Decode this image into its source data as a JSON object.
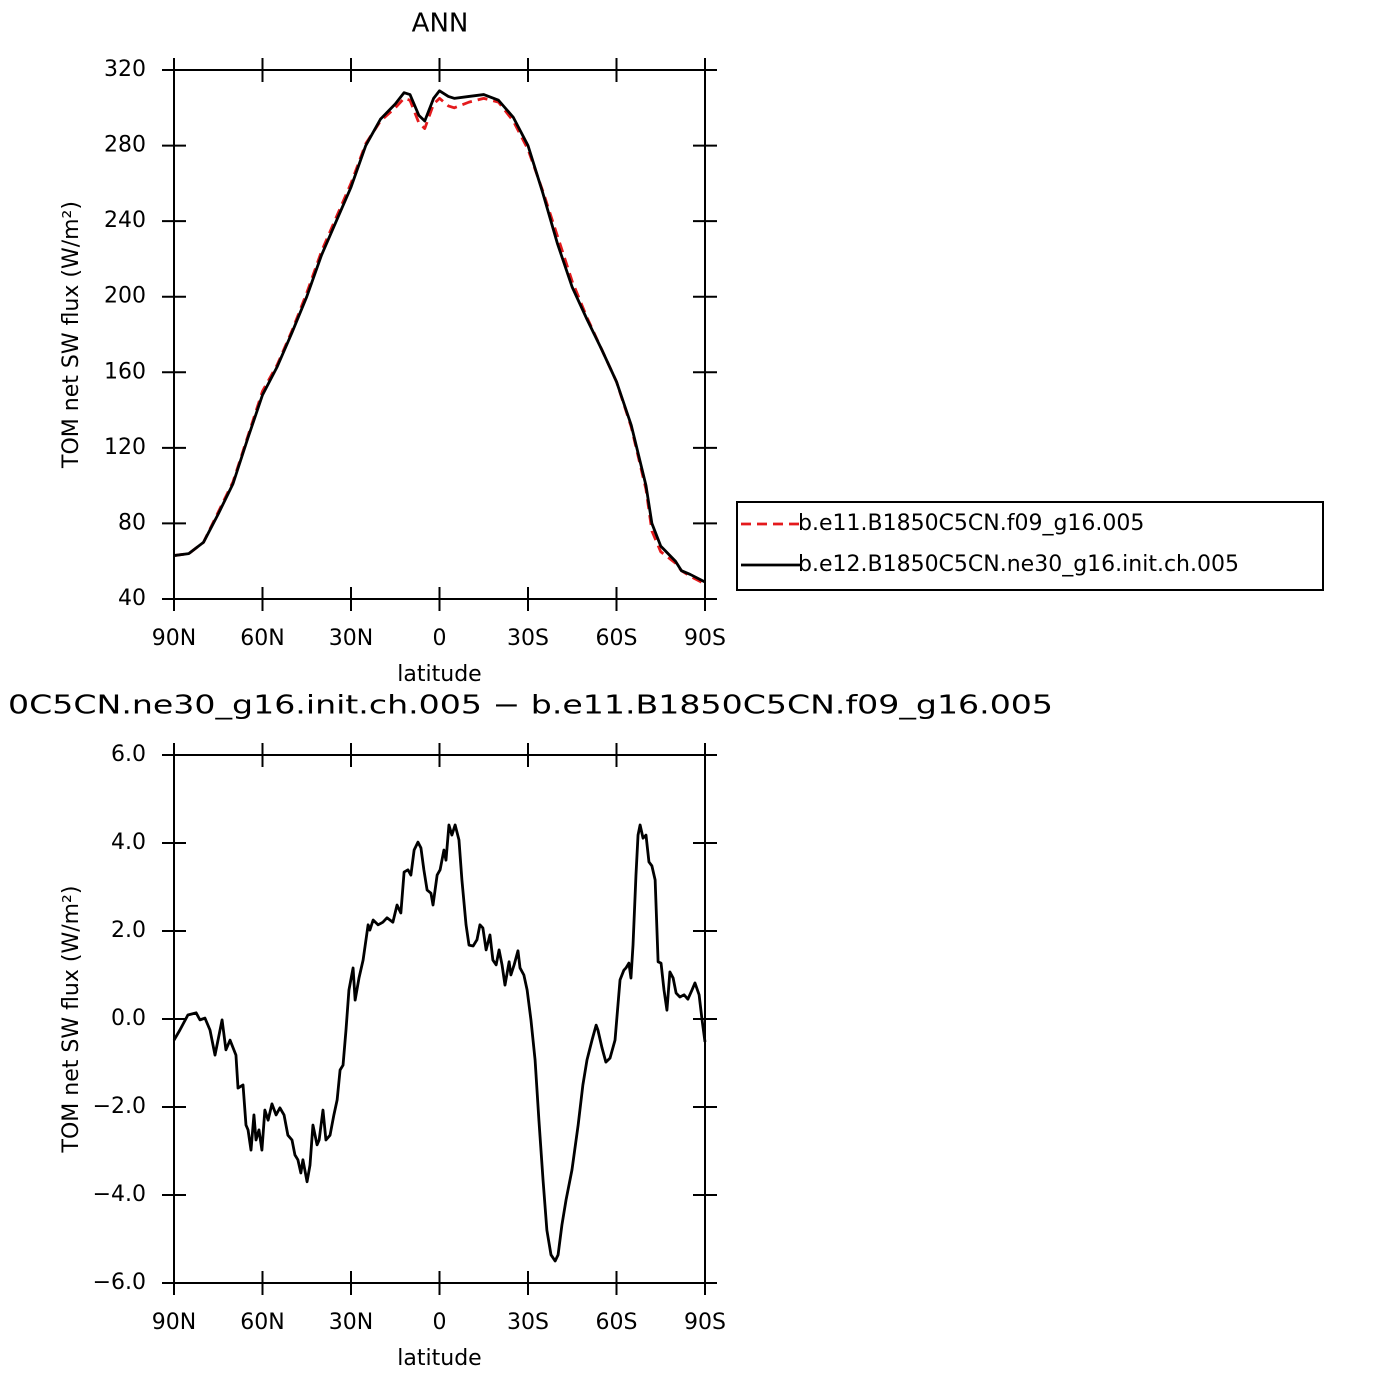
{
  "chart_data": [
    {
      "type": "line",
      "title": "ANN",
      "xlabel": "latitude",
      "ylabel": "TOM net SW flux (W/m²)",
      "x": [
        90,
        85,
        80,
        75,
        70,
        65,
        60,
        55,
        50,
        45,
        40,
        35,
        30,
        25,
        20,
        15,
        12,
        10,
        7,
        5,
        2,
        0,
        -3,
        -5,
        -10,
        -15,
        -20,
        -25,
        -30,
        -35,
        -40,
        -45,
        -50,
        -55,
        -60,
        -65,
        -70,
        -72,
        -75,
        -80,
        -82,
        -85,
        -90
      ],
      "series": [
        {
          "name": "b.e11.B1850C5CN.f09_g16.005",
          "color": "#e41a1c",
          "dash": true,
          "values": [
            63,
            64,
            70,
            86,
            102,
            126,
            150,
            164,
            182,
            202,
            224,
            242,
            260,
            281,
            293,
            300,
            305,
            304,
            292,
            289,
            302,
            305,
            301,
            300,
            303,
            305,
            303,
            293,
            278,
            256,
            232,
            208,
            189,
            172,
            155,
            131,
            98,
            76,
            65,
            59,
            55,
            52,
            48
          ]
        },
        {
          "name": "b.e12.B1850C5CN.ne30_g16.init.ch.005",
          "color": "#000000",
          "dash": false,
          "values": [
            63,
            64,
            70,
            85,
            101,
            125,
            148,
            163,
            181,
            200,
            222,
            240,
            258,
            280,
            294,
            302,
            308,
            307,
            296,
            293,
            305,
            309,
            306,
            305,
            306,
            307,
            304,
            295,
            280,
            255,
            228,
            205,
            188,
            172,
            155,
            132,
            100,
            80,
            68,
            60,
            55,
            53,
            49
          ]
        }
      ],
      "xlim": [
        90,
        -90
      ],
      "xticks": [
        {
          "value": 90,
          "label": "90N"
        },
        {
          "value": 60,
          "label": "60N"
        },
        {
          "value": 30,
          "label": "30N"
        },
        0,
        {
          "value": -30,
          "label": "30S"
        },
        {
          "value": -60,
          "label": "60S"
        },
        {
          "value": -90,
          "label": "90S"
        }
      ],
      "ylim": [
        40,
        320
      ],
      "yticks": [
        40,
        80,
        120,
        160,
        200,
        240,
        280,
        320
      ],
      "legend": "right"
    },
    {
      "type": "line",
      "title": "0C5CN.ne30_g16.init.ch.005 − b.e11.B1850C5CN.f09_g16.005",
      "xlabel": "latitude",
      "ylabel": "TOM net SW flux (W/m²)",
      "x": [
        90.0,
        88.0,
        85.3,
        82.5,
        81.2,
        79.5,
        77.8,
        76.1,
        73.7,
        72.4,
        71.0,
        69.0,
        68.3,
        66.6,
        65.6,
        64.9,
        63.9,
        62.9,
        62.2,
        61.2,
        60.2,
        59.2,
        58.1,
        56.8,
        55.4,
        54.1,
        52.7,
        51.4,
        50.0,
        49.0,
        48.0,
        47.0,
        46.3,
        44.9,
        43.9,
        42.9,
        41.5,
        40.8,
        39.5,
        38.5,
        37.1,
        35.8,
        34.7,
        33.7,
        32.7,
        31.7,
        30.7,
        29.3,
        28.6,
        27.3,
        25.9,
        24.2,
        23.6,
        22.5,
        20.8,
        19.2,
        17.8,
        15.8,
        14.4,
        13.1,
        12.0,
        10.7,
        9.7,
        8.6,
        7.3,
        6.3,
        5.3,
        4.2,
        2.9,
        2.2,
        0.8,
        -0.2,
        -1.5,
        -2.2,
        -3.2,
        -4.2,
        -5.3,
        -6.6,
        -7.6,
        -9.0,
        -10.0,
        -11.4,
        -12.7,
        -13.7,
        -14.7,
        -15.8,
        -17.1,
        -18.1,
        -19.2,
        -20.2,
        -21.2,
        -22.2,
        -23.6,
        -24.2,
        -25.3,
        -26.6,
        -27.3,
        -28.6,
        -29.7,
        -31.0,
        -32.4,
        -33.7,
        -35.1,
        -36.4,
        -37.8,
        -39.2,
        -40.2,
        -41.5,
        -42.9,
        -44.9,
        -47.0,
        -48.6,
        -50.0,
        -51.7,
        -53.1,
        -53.7,
        -55.1,
        -56.4,
        -57.8,
        -59.5,
        -61.2,
        -62.5,
        -63.2,
        -64.2,
        -64.9,
        -65.6,
        -66.6,
        -67.3,
        -68.0,
        -69.0,
        -70.0,
        -71.0,
        -72.0,
        -73.1,
        -74.1,
        -75.1,
        -76.1,
        -77.1,
        -78.1,
        -79.2,
        -80.2,
        -81.5,
        -82.9,
        -84.2,
        -85.6,
        -86.6,
        -88.0,
        -89.0,
        -90.0
      ],
      "values": [
        -0.48,
        -0.25,
        0.09,
        0.14,
        -0.02,
        0.02,
        -0.25,
        -0.82,
        -0.02,
        -0.7,
        -0.48,
        -0.82,
        -1.57,
        -1.5,
        -2.41,
        -2.52,
        -2.98,
        -2.18,
        -2.75,
        -2.52,
        -2.98,
        -2.07,
        -2.3,
        -1.93,
        -2.18,
        -2.02,
        -2.18,
        -2.64,
        -2.75,
        -3.09,
        -3.2,
        -3.5,
        -3.2,
        -3.7,
        -3.32,
        -2.41,
        -2.86,
        -2.75,
        -2.07,
        -2.75,
        -2.64,
        -2.18,
        -1.84,
        -1.16,
        -1.05,
        -0.25,
        0.66,
        1.16,
        0.43,
        0.93,
        1.34,
        2.14,
        2.02,
        2.25,
        2.14,
        2.2,
        2.3,
        2.2,
        2.59,
        2.41,
        3.34,
        3.39,
        3.27,
        3.84,
        4.02,
        3.89,
        3.39,
        2.93,
        2.86,
        2.59,
        3.27,
        3.39,
        3.84,
        3.61,
        4.41,
        4.18,
        4.41,
        4.07,
        3.16,
        2.14,
        1.68,
        1.66,
        1.8,
        2.14,
        2.07,
        1.57,
        1.91,
        1.34,
        1.23,
        1.57,
        1.23,
        0.77,
        1.3,
        1.0,
        1.23,
        1.55,
        1.16,
        1.0,
        0.66,
        -0.02,
        -0.93,
        -2.3,
        -3.66,
        -4.8,
        -5.36,
        -5.5,
        -5.36,
        -4.68,
        -4.11,
        -3.43,
        -2.41,
        -1.5,
        -0.93,
        -0.48,
        -0.14,
        -0.25,
        -0.66,
        -0.98,
        -0.89,
        -0.48,
        0.89,
        1.11,
        1.16,
        1.27,
        0.93,
        1.68,
        3.27,
        4.18,
        4.41,
        4.11,
        4.18,
        3.57,
        3.48,
        3.16,
        1.3,
        1.27,
        0.66,
        0.2,
        1.07,
        0.93,
        0.59,
        0.5,
        0.55,
        0.45,
        0.66,
        0.82,
        0.55,
        -0.02,
        -0.52
      ],
      "color": "#000000",
      "xlim": [
        90,
        -90
      ],
      "xticks": [
        {
          "value": 90,
          "label": "90N"
        },
        {
          "value": 60,
          "label": "60N"
        },
        {
          "value": 30,
          "label": "30N"
        },
        0,
        {
          "value": -30,
          "label": "30S"
        },
        {
          "value": -60,
          "label": "60S"
        },
        {
          "value": -90,
          "label": "90S"
        }
      ],
      "ylim": [
        -6,
        6
      ],
      "yticks": [
        {
          "value": -6,
          "label": "−6.0"
        },
        {
          "value": -4,
          "label": "−4.0"
        },
        {
          "value": -2,
          "label": "−2.0"
        },
        {
          "value": 0,
          "label": "0.0"
        },
        {
          "value": 2,
          "label": "2.0"
        },
        {
          "value": 4,
          "label": "4.0"
        },
        {
          "value": 6,
          "label": "6.0"
        }
      ]
    }
  ]
}
